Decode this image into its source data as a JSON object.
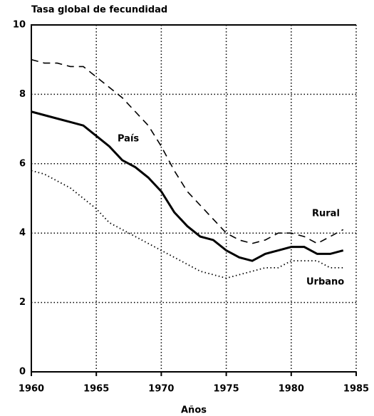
{
  "chart_data": {
    "type": "line",
    "title": "Tasa global de fecundidad",
    "x_label": "Años",
    "x": [
      1960,
      1961,
      1962,
      1963,
      1964,
      1965,
      1966,
      1967,
      1968,
      1969,
      1970,
      1971,
      1972,
      1973,
      1974,
      1975,
      1976,
      1977,
      1978,
      1979,
      1980,
      1981,
      1982,
      1983,
      1984
    ],
    "series": [
      {
        "name": "País",
        "color": "#000000",
        "style": "solid",
        "values": [
          7.5,
          7.4,
          7.3,
          7.2,
          7.1,
          6.8,
          6.5,
          6.1,
          5.9,
          5.6,
          5.2,
          4.6,
          4.2,
          3.9,
          3.8,
          3.5,
          3.3,
          3.2,
          3.4,
          3.5,
          3.6,
          3.6,
          3.4,
          3.4,
          3.5
        ]
      },
      {
        "name": "Rural",
        "color": "#000000",
        "style": "dashed",
        "values": [
          9.0,
          8.9,
          8.9,
          8.8,
          8.8,
          8.5,
          8.2,
          7.9,
          7.5,
          7.1,
          6.5,
          5.8,
          5.2,
          4.8,
          4.4,
          4.0,
          3.8,
          3.7,
          3.8,
          4.0,
          4.0,
          3.9,
          3.7,
          3.9,
          4.1
        ]
      },
      {
        "name": "Urbano",
        "color": "#000000",
        "style": "dotted",
        "values": [
          5.8,
          5.7,
          5.5,
          5.3,
          5.0,
          4.7,
          4.3,
          4.1,
          3.9,
          3.7,
          3.5,
          3.3,
          3.1,
          2.9,
          2.8,
          2.7,
          2.8,
          2.9,
          3.0,
          3.0,
          3.2,
          3.2,
          3.2,
          3.0,
          3.0
        ]
      }
    ],
    "xlim": [
      1960,
      1985
    ],
    "xticks": [
      1960,
      1965,
      1970,
      1975,
      1980,
      1985
    ],
    "ylim": [
      0,
      10
    ],
    "yticks": [
      0,
      2,
      4,
      6,
      8,
      10
    ],
    "grid": true
  }
}
